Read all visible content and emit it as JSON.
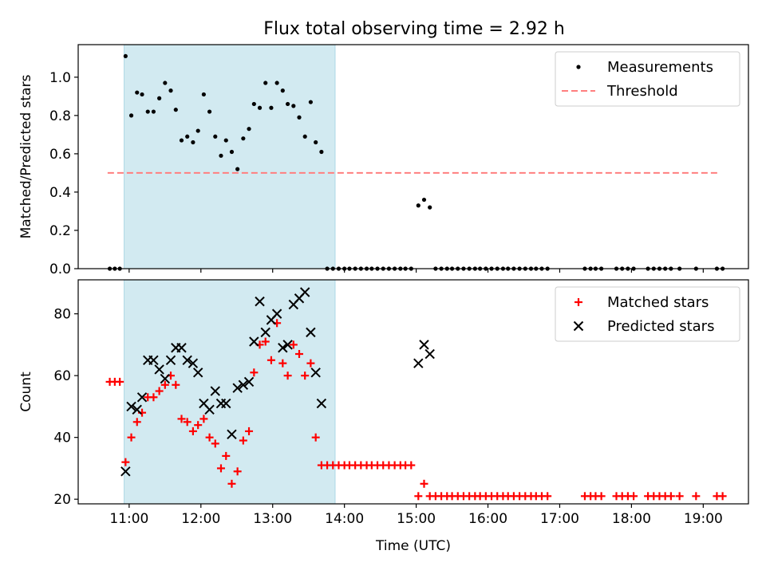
{
  "figure": {
    "title": "Flux total observing time = 2.92 h"
  },
  "colors": {
    "shade": "#add8e6",
    "threshold": "#ff7f7f",
    "matched": "#ff0000",
    "predicted": "#000000",
    "measurement": "#000000"
  },
  "chart_data": [
    {
      "type": "scatter",
      "panel": "top",
      "ylabel": "Matched/Predicted stars",
      "xlabel": "",
      "x_unit": "hour of day (UTC)",
      "xlim": [
        10.29,
        19.63
      ],
      "ylim": [
        0.0,
        1.17
      ],
      "yticks": [
        0.0,
        0.2,
        0.4,
        0.6,
        0.8,
        1.0
      ],
      "ytick_labels": [
        "0.0",
        "0.2",
        "0.4",
        "0.6",
        "0.8",
        "1.0"
      ],
      "xticks": [
        11,
        12,
        13,
        14,
        15,
        16,
        17,
        18,
        19
      ],
      "xtick_labels": [
        "",
        "",
        "",
        "",
        "",
        "",
        "",
        "",
        ""
      ],
      "shaded_span": [
        10.93,
        13.87
      ],
      "legend": {
        "position": "upper right",
        "entries": [
          "Measurements",
          "Threshold"
        ]
      },
      "threshold": {
        "name": "Threshold",
        "y": 0.5,
        "x": [
          10.7,
          19.23
        ],
        "style": "dashed"
      },
      "series": [
        {
          "name": "Measurements",
          "marker": "dot",
          "points": [
            [
              10.73,
              0.0
            ],
            [
              10.8,
              0.0
            ],
            [
              10.87,
              0.0
            ],
            [
              10.95,
              1.11
            ],
            [
              11.03,
              0.8
            ],
            [
              11.11,
              0.92
            ],
            [
              11.18,
              0.91
            ],
            [
              11.26,
              0.82
            ],
            [
              11.34,
              0.82
            ],
            [
              11.42,
              0.89
            ],
            [
              11.5,
              0.97
            ],
            [
              11.58,
              0.93
            ],
            [
              11.65,
              0.83
            ],
            [
              11.73,
              0.67
            ],
            [
              11.81,
              0.69
            ],
            [
              11.89,
              0.66
            ],
            [
              11.96,
              0.72
            ],
            [
              12.04,
              0.91
            ],
            [
              12.12,
              0.82
            ],
            [
              12.2,
              0.69
            ],
            [
              12.28,
              0.59
            ],
            [
              12.35,
              0.67
            ],
            [
              12.43,
              0.61
            ],
            [
              12.51,
              0.52
            ],
            [
              12.59,
              0.68
            ],
            [
              12.67,
              0.73
            ],
            [
              12.74,
              0.86
            ],
            [
              12.82,
              0.84
            ],
            [
              12.9,
              0.97
            ],
            [
              12.98,
              0.84
            ],
            [
              13.06,
              0.97
            ],
            [
              13.14,
              0.93
            ],
            [
              13.21,
              0.86
            ],
            [
              13.29,
              0.85
            ],
            [
              13.37,
              0.79
            ],
            [
              13.45,
              0.69
            ],
            [
              13.53,
              0.87
            ],
            [
              13.6,
              0.66
            ],
            [
              13.68,
              0.61
            ],
            [
              13.76,
              0.0
            ],
            [
              13.84,
              0.0
            ],
            [
              13.92,
              0.0
            ],
            [
              14.0,
              0.0
            ],
            [
              14.07,
              0.0
            ],
            [
              14.15,
              0.0
            ],
            [
              14.23,
              0.0
            ],
            [
              14.31,
              0.0
            ],
            [
              14.38,
              0.0
            ],
            [
              14.46,
              0.0
            ],
            [
              14.54,
              0.0
            ],
            [
              14.62,
              0.0
            ],
            [
              14.7,
              0.0
            ],
            [
              14.78,
              0.0
            ],
            [
              14.85,
              0.0
            ],
            [
              14.93,
              0.0
            ],
            [
              15.03,
              0.33
            ],
            [
              15.11,
              0.36
            ],
            [
              15.19,
              0.32
            ],
            [
              15.27,
              0.0
            ],
            [
              15.35,
              0.0
            ],
            [
              15.43,
              0.0
            ],
            [
              15.5,
              0.0
            ],
            [
              15.58,
              0.0
            ],
            [
              15.66,
              0.0
            ],
            [
              15.74,
              0.0
            ],
            [
              15.82,
              0.0
            ],
            [
              15.89,
              0.0
            ],
            [
              15.97,
              0.0
            ],
            [
              16.05,
              0.0
            ],
            [
              16.13,
              0.0
            ],
            [
              16.21,
              0.0
            ],
            [
              16.28,
              0.0
            ],
            [
              16.36,
              0.0
            ],
            [
              16.44,
              0.0
            ],
            [
              16.52,
              0.0
            ],
            [
              16.6,
              0.0
            ],
            [
              16.67,
              0.0
            ],
            [
              16.75,
              0.0
            ],
            [
              16.83,
              0.0
            ],
            [
              17.35,
              0.0
            ],
            [
              17.43,
              0.0
            ],
            [
              17.5,
              0.0
            ],
            [
              17.58,
              0.0
            ],
            [
              17.79,
              0.0
            ],
            [
              17.87,
              0.0
            ],
            [
              17.95,
              0.0
            ],
            [
              18.03,
              0.0
            ],
            [
              18.23,
              0.0
            ],
            [
              18.31,
              0.0
            ],
            [
              18.39,
              0.0
            ],
            [
              18.47,
              0.0
            ],
            [
              18.55,
              0.0
            ],
            [
              18.67,
              0.0
            ],
            [
              18.9,
              0.0
            ],
            [
              19.19,
              0.0
            ],
            [
              19.27,
              0.0
            ]
          ]
        }
      ]
    },
    {
      "type": "scatter",
      "panel": "bottom",
      "ylabel": "Count",
      "xlabel": "Time (UTC)",
      "x_unit": "hour of day (UTC)",
      "xlim": [
        10.29,
        19.63
      ],
      "ylim": [
        18.5,
        91
      ],
      "yticks": [
        20,
        40,
        60,
        80
      ],
      "ytick_labels": [
        "20",
        "40",
        "60",
        "80"
      ],
      "xticks": [
        11,
        12,
        13,
        14,
        15,
        16,
        17,
        18,
        19
      ],
      "xtick_labels": [
        "11:00",
        "12:00",
        "13:00",
        "14:00",
        "15:00",
        "16:00",
        "17:00",
        "18:00",
        "19:00"
      ],
      "shaded_span": [
        10.93,
        13.87
      ],
      "legend": {
        "position": "upper right",
        "entries": [
          "Matched stars",
          "Predicted stars"
        ]
      },
      "series": [
        {
          "name": "Matched stars",
          "marker": "plus",
          "points": [
            [
              10.73,
              58
            ],
            [
              10.8,
              58
            ],
            [
              10.87,
              58
            ],
            [
              10.95,
              32
            ],
            [
              11.03,
              40
            ],
            [
              11.11,
              45
            ],
            [
              11.18,
              48
            ],
            [
              11.26,
              53
            ],
            [
              11.34,
              53
            ],
            [
              11.42,
              55
            ],
            [
              11.5,
              57
            ],
            [
              11.58,
              60
            ],
            [
              11.65,
              57
            ],
            [
              11.73,
              46
            ],
            [
              11.81,
              45
            ],
            [
              11.89,
              42
            ],
            [
              11.96,
              44
            ],
            [
              12.04,
              46
            ],
            [
              12.12,
              40
            ],
            [
              12.2,
              38
            ],
            [
              12.28,
              30
            ],
            [
              12.35,
              34
            ],
            [
              12.43,
              25
            ],
            [
              12.51,
              29
            ],
            [
              12.59,
              39
            ],
            [
              12.67,
              42
            ],
            [
              12.74,
              61
            ],
            [
              12.82,
              70
            ],
            [
              12.9,
              71
            ],
            [
              12.98,
              65
            ],
            [
              13.06,
              77
            ],
            [
              13.14,
              64
            ],
            [
              13.21,
              60
            ],
            [
              13.29,
              70
            ],
            [
              13.37,
              67
            ],
            [
              13.45,
              60
            ],
            [
              13.53,
              64
            ],
            [
              13.6,
              40
            ],
            [
              13.68,
              31
            ],
            [
              13.76,
              31
            ],
            [
              13.84,
              31
            ],
            [
              13.92,
              31
            ],
            [
              14.0,
              31
            ],
            [
              14.07,
              31
            ],
            [
              14.15,
              31
            ],
            [
              14.23,
              31
            ],
            [
              14.31,
              31
            ],
            [
              14.38,
              31
            ],
            [
              14.46,
              31
            ],
            [
              14.54,
              31
            ],
            [
              14.62,
              31
            ],
            [
              14.7,
              31
            ],
            [
              14.78,
              31
            ],
            [
              14.85,
              31
            ],
            [
              14.93,
              31
            ],
            [
              15.03,
              21
            ],
            [
              15.11,
              25
            ],
            [
              15.19,
              21
            ],
            [
              15.27,
              21
            ],
            [
              15.35,
              21
            ],
            [
              15.43,
              21
            ],
            [
              15.5,
              21
            ],
            [
              15.58,
              21
            ],
            [
              15.66,
              21
            ],
            [
              15.74,
              21
            ],
            [
              15.82,
              21
            ],
            [
              15.89,
              21
            ],
            [
              15.97,
              21
            ],
            [
              16.05,
              21
            ],
            [
              16.13,
              21
            ],
            [
              16.21,
              21
            ],
            [
              16.28,
              21
            ],
            [
              16.36,
              21
            ],
            [
              16.44,
              21
            ],
            [
              16.52,
              21
            ],
            [
              16.6,
              21
            ],
            [
              16.67,
              21
            ],
            [
              16.75,
              21
            ],
            [
              16.83,
              21
            ],
            [
              17.35,
              21
            ],
            [
              17.43,
              21
            ],
            [
              17.5,
              21
            ],
            [
              17.58,
              21
            ],
            [
              17.79,
              21
            ],
            [
              17.87,
              21
            ],
            [
              17.95,
              21
            ],
            [
              18.03,
              21
            ],
            [
              18.23,
              21
            ],
            [
              18.31,
              21
            ],
            [
              18.39,
              21
            ],
            [
              18.47,
              21
            ],
            [
              18.55,
              21
            ],
            [
              18.67,
              21
            ],
            [
              18.9,
              21
            ],
            [
              19.19,
              21
            ],
            [
              19.27,
              21
            ]
          ]
        },
        {
          "name": "Predicted stars",
          "marker": "x",
          "points": [
            [
              10.95,
              29
            ],
            [
              11.03,
              50
            ],
            [
              11.11,
              49
            ],
            [
              11.18,
              53
            ],
            [
              11.26,
              65
            ],
            [
              11.34,
              65
            ],
            [
              11.42,
              62
            ],
            [
              11.5,
              59
            ],
            [
              11.58,
              65
            ],
            [
              11.65,
              69
            ],
            [
              11.73,
              69
            ],
            [
              11.81,
              65
            ],
            [
              11.89,
              64
            ],
            [
              11.96,
              61
            ],
            [
              12.04,
              51
            ],
            [
              12.12,
              49
            ],
            [
              12.2,
              55
            ],
            [
              12.28,
              51
            ],
            [
              12.35,
              51
            ],
            [
              12.43,
              41
            ],
            [
              12.51,
              56
            ],
            [
              12.59,
              57
            ],
            [
              12.67,
              58
            ],
            [
              12.74,
              71
            ],
            [
              12.82,
              84
            ],
            [
              12.9,
              74
            ],
            [
              12.98,
              78
            ],
            [
              13.06,
              80
            ],
            [
              13.14,
              69
            ],
            [
              13.21,
              70
            ],
            [
              13.29,
              83
            ],
            [
              13.37,
              85
            ],
            [
              13.45,
              87
            ],
            [
              13.53,
              74
            ],
            [
              13.6,
              61
            ],
            [
              13.68,
              51
            ],
            [
              15.03,
              64
            ],
            [
              15.11,
              70
            ],
            [
              15.19,
              67
            ]
          ]
        }
      ]
    }
  ]
}
